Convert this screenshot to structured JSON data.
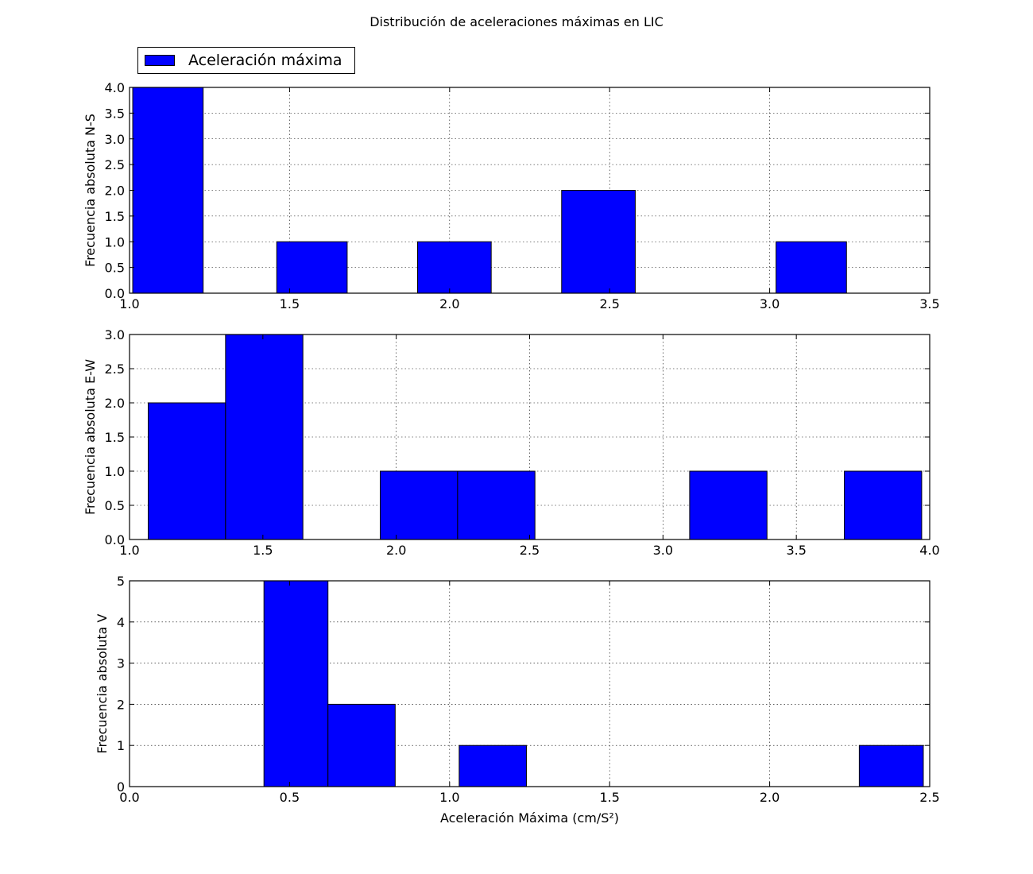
{
  "figure": {
    "title": "Distribución de aceleraciones máximas en LIC",
    "legend_label": "Aceleración máxima",
    "bar_color": "#0000ff",
    "edge_color": "#000000"
  },
  "chart_data": [
    {
      "type": "bar",
      "title": "",
      "ylabel": "Frecuencia absoluta N-S",
      "xlabel": "",
      "xlim": [
        1.0,
        3.5
      ],
      "ylim": [
        0,
        4.0
      ],
      "xticks": [
        "1.0",
        "1.5",
        "2.0",
        "2.5",
        "3.0",
        "3.5"
      ],
      "yticks": [
        "0.0",
        "0.5",
        "1.0",
        "1.5",
        "2.0",
        "2.5",
        "3.0",
        "3.5",
        "4.0"
      ],
      "grid": true,
      "legend": "top-left above",
      "bars": [
        {
          "x0": 1.01,
          "x1": 1.23,
          "value": 4
        },
        {
          "x0": 1.46,
          "x1": 1.68,
          "value": 1
        },
        {
          "x0": 1.9,
          "x1": 2.13,
          "value": 1
        },
        {
          "x0": 2.35,
          "x1": 2.58,
          "value": 2
        },
        {
          "x0": 3.02,
          "x1": 3.24,
          "value": 1
        }
      ]
    },
    {
      "type": "bar",
      "title": "",
      "ylabel": "Frecuencia absoluta E-W",
      "xlabel": "",
      "xlim": [
        1.0,
        4.0
      ],
      "ylim": [
        0,
        3.0
      ],
      "xticks": [
        "1.0",
        "1.5",
        "2.0",
        "2.5",
        "3.0",
        "3.5",
        "4.0"
      ],
      "yticks": [
        "0.0",
        "0.5",
        "1.0",
        "1.5",
        "2.0",
        "2.5",
        "3.0"
      ],
      "grid": true,
      "bars": [
        {
          "x0": 1.07,
          "x1": 1.36,
          "value": 2
        },
        {
          "x0": 1.36,
          "x1": 1.65,
          "value": 3
        },
        {
          "x0": 1.94,
          "x1": 2.23,
          "value": 1
        },
        {
          "x0": 2.23,
          "x1": 2.52,
          "value": 1
        },
        {
          "x0": 3.1,
          "x1": 3.39,
          "value": 1
        },
        {
          "x0": 3.68,
          "x1": 3.97,
          "value": 1
        }
      ]
    },
    {
      "type": "bar",
      "title": "",
      "ylabel": "Frecuencia absoluta V",
      "xlabel": "Aceleración Máxima (cm/S²)",
      "xlim": [
        0.0,
        2.5
      ],
      "ylim": [
        0,
        5
      ],
      "xticks": [
        "0.0",
        "0.5",
        "1.0",
        "1.5",
        "2.0",
        "2.5"
      ],
      "yticks": [
        "0",
        "1",
        "2",
        "3",
        "4",
        "5"
      ],
      "grid": true,
      "bars": [
        {
          "x0": 0.42,
          "x1": 0.62,
          "value": 5
        },
        {
          "x0": 0.62,
          "x1": 0.83,
          "value": 2
        },
        {
          "x0": 1.03,
          "x1": 1.24,
          "value": 1
        },
        {
          "x0": 2.28,
          "x1": 2.48,
          "value": 1
        }
      ]
    }
  ]
}
